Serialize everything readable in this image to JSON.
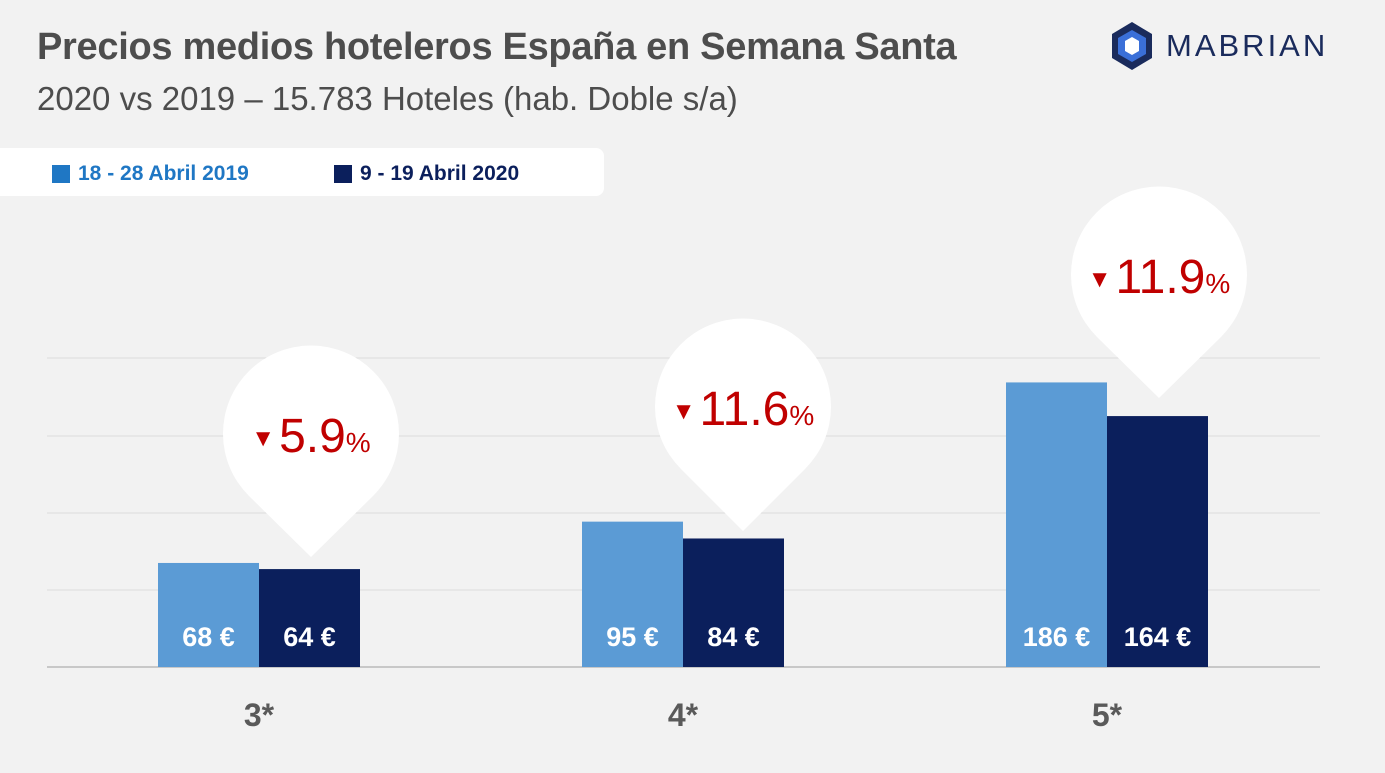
{
  "header": {
    "title": "Precios medios hoteleros España en Semana Santa",
    "subtitle": "2020 vs 2019 – 15.783 Hoteles (hab. Doble s/a)"
  },
  "logo": {
    "text": "MABRIAN",
    "color": "#1a2b5c",
    "accent": "#3a6fd8"
  },
  "legend": [
    {
      "label": "18 - 28 Abril 2019",
      "color": "#5b9bd5",
      "text_color": "#1f77c4"
    },
    {
      "label": "9 - 19 Abril 2020",
      "color": "#0b1f5c",
      "text_color": "#0b1f5c"
    }
  ],
  "chart_data": {
    "type": "bar",
    "categories": [
      "3*",
      "4*",
      "5*"
    ],
    "series": [
      {
        "name": "18 - 28 Abril 2019",
        "values": [
          68,
          95,
          186
        ],
        "labels": [
          "68 €",
          "95 €",
          "186 €"
        ],
        "color": "#5b9bd5"
      },
      {
        "name": "9 - 19 Abril 2020",
        "values": [
          64,
          84,
          164
        ],
        "labels": [
          "64 €",
          "84 €",
          "164 €"
        ],
        "color": "#0b1f5c"
      }
    ],
    "changes": [
      {
        "arrow": "▼",
        "value": "5.9",
        "unit": "%"
      },
      {
        "arrow": "▼",
        "value": "11.6",
        "unit": "%"
      },
      {
        "arrow": "▼",
        "value": "11.9",
        "unit": "%"
      }
    ],
    "change_color": "#c00000",
    "ylim": [
      0,
      200
    ],
    "grid": true
  }
}
